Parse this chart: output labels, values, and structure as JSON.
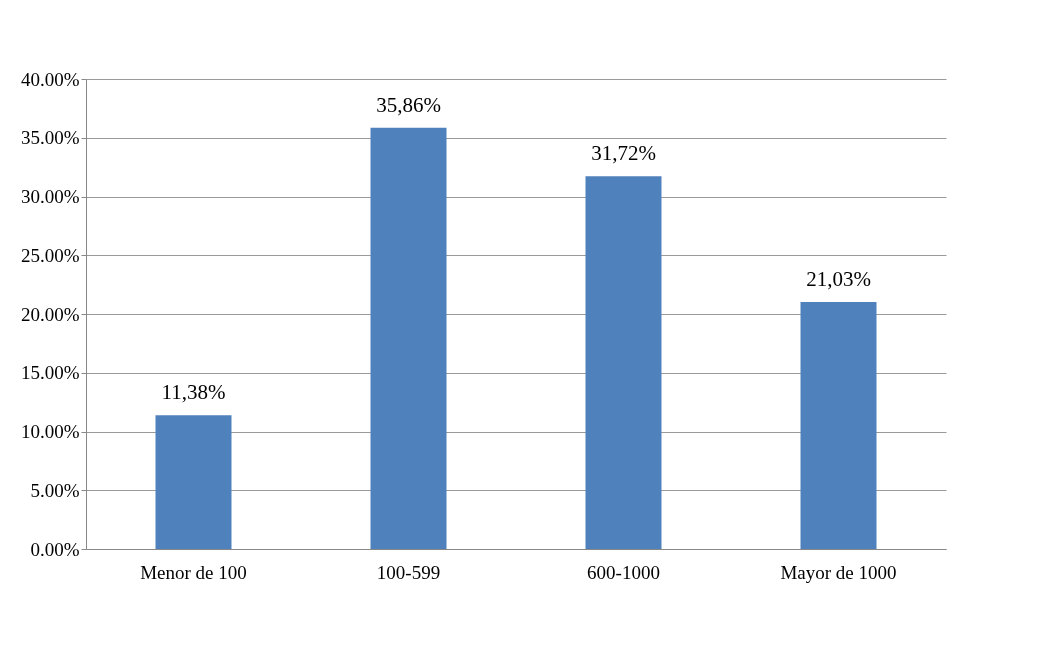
{
  "chart_data": {
    "type": "bar",
    "categories": [
      "Menor de 100",
      "100-599",
      "600-1000",
      "Mayor de 1000"
    ],
    "values": [
      11.38,
      35.86,
      31.72,
      21.03
    ],
    "value_labels": [
      "11,38%",
      "35,86%",
      "31,72%",
      "21,03%"
    ],
    "color": "#4f81bd",
    "ylim": [
      0,
      40
    ],
    "yticks": [
      {
        "value": 0,
        "label": "0.00%"
      },
      {
        "value": 5,
        "label": "5.00%"
      },
      {
        "value": 10,
        "label": "10.00%"
      },
      {
        "value": 15,
        "label": "15.00%"
      },
      {
        "value": 20,
        "label": "20.00%"
      },
      {
        "value": 25,
        "label": "25.00%"
      },
      {
        "value": 30,
        "label": "30.00%"
      },
      {
        "value": 35,
        "label": "35.00%"
      },
      {
        "value": 40,
        "label": "40.00%"
      }
    ],
    "grid": "y"
  }
}
